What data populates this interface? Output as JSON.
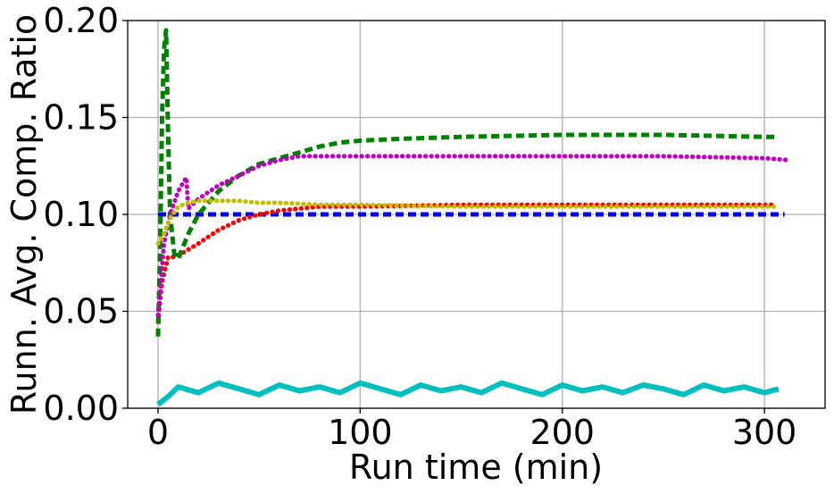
{
  "chart_data": {
    "type": "line",
    "xlabel": "Run time (min)",
    "ylabel": "Runn. Avg. Comp. Ratio",
    "xlim": [
      -15,
      330
    ],
    "ylim": [
      0,
      0.2
    ],
    "grid": true,
    "x_ticks": [
      0,
      100,
      200,
      300
    ],
    "x_tick_labels": [
      "0",
      "100",
      "200",
      "300"
    ],
    "y_ticks": [
      0,
      0.05,
      0.1,
      0.15,
      0.2
    ],
    "y_tick_labels": [
      "0.00",
      "0.05",
      "0.10",
      "0.15",
      "0.20"
    ],
    "series": [
      {
        "color": "#00bfbf",
        "style": "solid",
        "x": [
          0,
          5,
          10,
          20,
          30,
          40,
          50,
          60,
          70,
          80,
          90,
          100,
          110,
          120,
          130,
          140,
          150,
          160,
          170,
          180,
          190,
          200,
          210,
          220,
          230,
          240,
          250,
          260,
          270,
          280,
          290,
          300,
          307
        ],
        "y": [
          0.002,
          0.006,
          0.011,
          0.008,
          0.013,
          0.01,
          0.007,
          0.012,
          0.009,
          0.011,
          0.008,
          0.013,
          0.01,
          0.007,
          0.012,
          0.009,
          0.011,
          0.008,
          0.013,
          0.01,
          0.007,
          0.012,
          0.009,
          0.011,
          0.008,
          0.012,
          0.01,
          0.007,
          0.012,
          0.009,
          0.011,
          0.008,
          0.01
        ]
      },
      {
        "color": "#0000ff",
        "style": "dashed",
        "x": [
          0,
          5,
          10,
          20,
          50,
          100,
          150,
          200,
          250,
          300,
          310
        ],
        "y": [
          0.1,
          0.1,
          0.1,
          0.1,
          0.1,
          0.1,
          0.1,
          0.1,
          0.1,
          0.1,
          0.1
        ]
      },
      {
        "color": "#ff0000",
        "style": "dotted",
        "x": [
          0,
          2,
          5,
          8,
          12,
          20,
          30,
          40,
          50,
          60,
          70,
          80,
          100,
          150,
          200,
          250,
          300,
          305
        ],
        "y": [
          0.045,
          0.065,
          0.078,
          0.078,
          0.08,
          0.085,
          0.092,
          0.097,
          0.1,
          0.102,
          0.103,
          0.104,
          0.104,
          0.105,
          0.105,
          0.105,
          0.105,
          0.105
        ]
      },
      {
        "color": "#008000",
        "style": "dashed",
        "x": [
          0,
          1,
          2,
          3,
          4,
          5,
          6,
          8,
          10,
          15,
          20,
          30,
          40,
          50,
          60,
          70,
          80,
          90,
          100,
          120,
          150,
          200,
          250,
          300,
          307
        ],
        "y": [
          0.037,
          0.08,
          0.15,
          0.185,
          0.195,
          0.14,
          0.1,
          0.08,
          0.077,
          0.09,
          0.1,
          0.112,
          0.12,
          0.126,
          0.129,
          0.132,
          0.135,
          0.137,
          0.138,
          0.139,
          0.14,
          0.141,
          0.141,
          0.14,
          0.14
        ]
      },
      {
        "color": "#bf00bf",
        "style": "dotted",
        "x": [
          0,
          3,
          6,
          10,
          14,
          15,
          20,
          30,
          40,
          50,
          60,
          70,
          80,
          100,
          150,
          200,
          250,
          300,
          312
        ],
        "y": [
          0.048,
          0.085,
          0.1,
          0.112,
          0.119,
          0.103,
          0.108,
          0.115,
          0.12,
          0.125,
          0.128,
          0.13,
          0.13,
          0.13,
          0.13,
          0.13,
          0.13,
          0.129,
          0.128
        ]
      },
      {
        "color": "#bfbf00",
        "style": "dotted",
        "x": [
          0,
          3,
          6,
          10,
          15,
          20,
          30,
          40,
          50,
          60,
          80,
          100,
          150,
          200,
          250,
          300,
          305
        ],
        "y": [
          0.085,
          0.09,
          0.098,
          0.104,
          0.106,
          0.107,
          0.107,
          0.107,
          0.106,
          0.106,
          0.105,
          0.105,
          0.104,
          0.104,
          0.104,
          0.104,
          0.104
        ]
      }
    ]
  }
}
